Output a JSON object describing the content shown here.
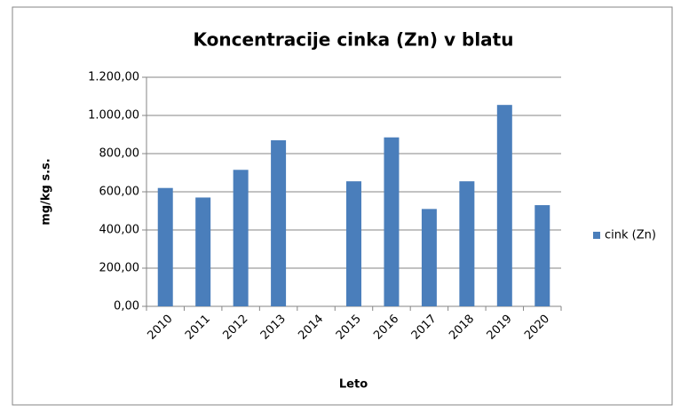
{
  "chart_data": {
    "type": "bar",
    "title": "Koncentracije cinka (Zn) v blatu",
    "x_label": "Leto",
    "y_label": "mg/kg s.s.",
    "categories": [
      "2010",
      "2011",
      "2012",
      "2013",
      "2014",
      "2015",
      "2016",
      "2017",
      "2018",
      "2019",
      "2020"
    ],
    "series": [
      {
        "name": "cink (Zn)",
        "color": "#4a7ebb",
        "values": [
          620,
          570,
          715,
          870,
          null,
          655,
          885,
          510,
          655,
          1055,
          530
        ]
      }
    ],
    "ylim": [
      0,
      1200
    ],
    "yticks": [
      {
        "value": 0,
        "label": "0,00"
      },
      {
        "value": 200,
        "label": "200,00"
      },
      {
        "value": 400,
        "label": "400,00"
      },
      {
        "value": 600,
        "label": "600,00"
      },
      {
        "value": 800,
        "label": "800,00"
      },
      {
        "value": 1000,
        "label": "1.000,00"
      },
      {
        "value": 1200,
        "label": "1.200,00"
      }
    ],
    "grid": true,
    "legend": "right"
  }
}
